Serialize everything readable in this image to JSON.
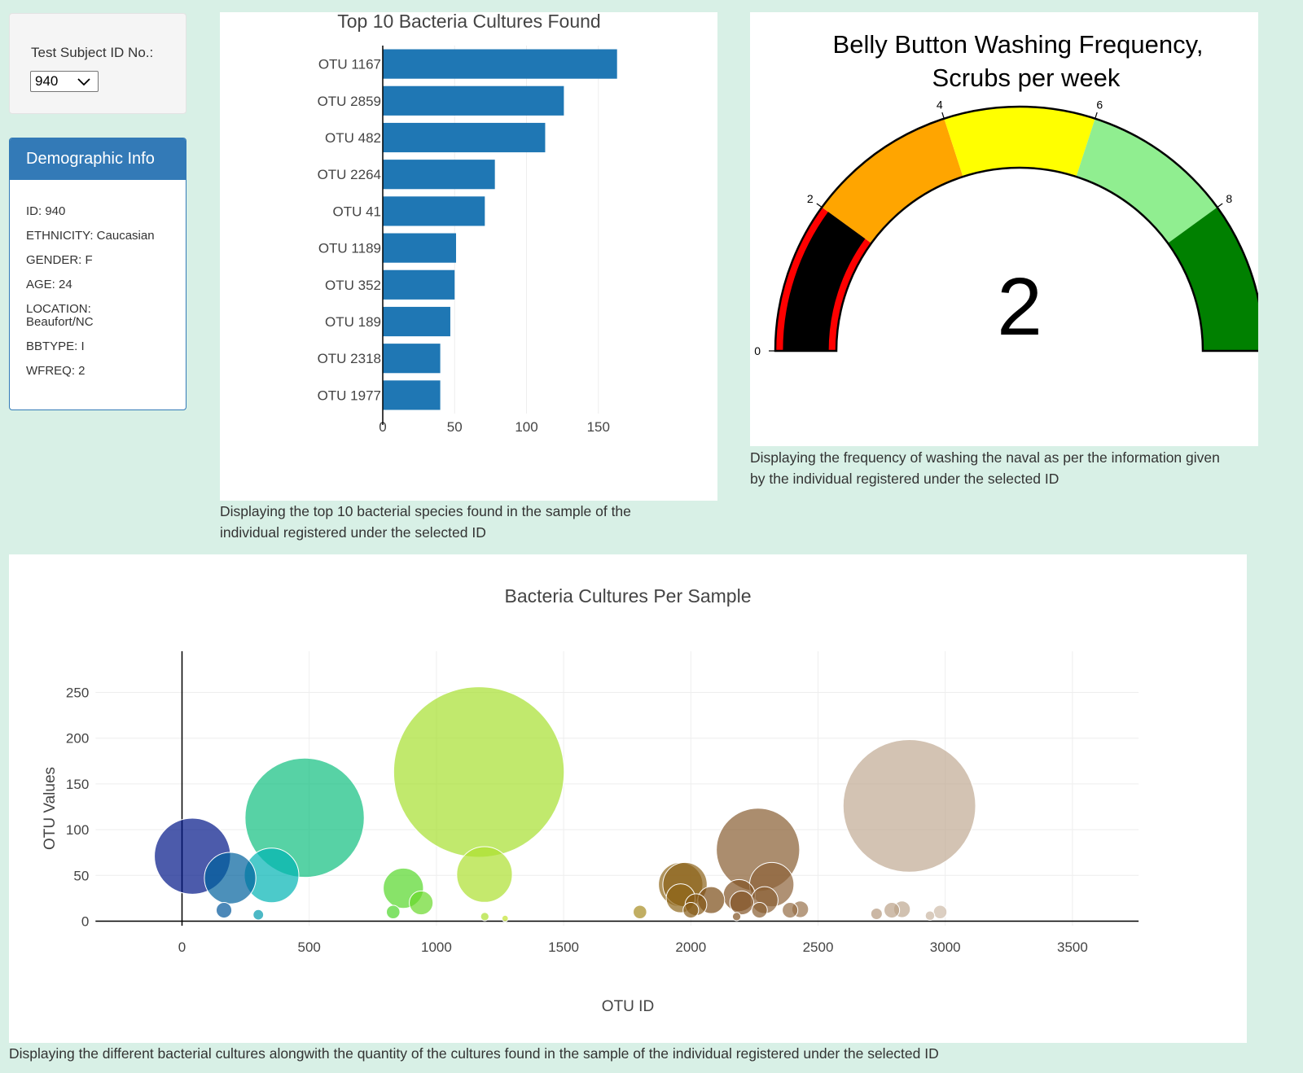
{
  "selector": {
    "label": "Test Subject ID No.:",
    "value": "940"
  },
  "demographic": {
    "heading": "Demographic Info",
    "lines": [
      "ID: 940",
      "ETHNICITY: Caucasian",
      "GENDER: F",
      "AGE: 24",
      "LOCATION: Beaufort/NC",
      "BBTYPE: I",
      "WFREQ: 2"
    ]
  },
  "captions": {
    "bar": "Displaying the top 10 bacterial species found in the sample of the individual registered under the selected ID",
    "gauge": "Displaying the frequency of washing the naval as per the information given by the individual registered under the selected ID",
    "bubble": "Displaying the different bacterial cultures alongwith the quantity of the cultures found in the sample of the individual registered under the selected ID"
  },
  "chart_data": [
    {
      "type": "bar",
      "orientation": "horizontal",
      "title": "Top 10 Bacteria Cultures Found",
      "categories": [
        "OTU 1167",
        "OTU 2859",
        "OTU 482",
        "OTU 2264",
        "OTU 41",
        "OTU 1189",
        "OTU 352",
        "OTU 189",
        "OTU 2318",
        "OTU 1977"
      ],
      "values": [
        163,
        126,
        113,
        78,
        71,
        51,
        50,
        47,
        40,
        40
      ],
      "xticks": [
        0,
        50,
        100,
        150
      ],
      "xlim": [
        0,
        171
      ],
      "color": "#1f77b4"
    },
    {
      "type": "gauge",
      "title_lines": [
        "Belly Button Washing Frequency,",
        "Scrubs per week"
      ],
      "value": 2,
      "range": [
        0,
        10
      ],
      "ticks": [
        0,
        2,
        4,
        6,
        8,
        10
      ],
      "steps": [
        {
          "range": [
            0,
            2
          ],
          "color": "#ff0000"
        },
        {
          "range": [
            2,
            4
          ],
          "color": "#ffa500"
        },
        {
          "range": [
            4,
            6
          ],
          "color": "#ffff00"
        },
        {
          "range": [
            6,
            8
          ],
          "color": "#90ee90"
        },
        {
          "range": [
            8,
            10
          ],
          "color": "#008000"
        }
      ],
      "bar_color": "#000000"
    },
    {
      "type": "scatter",
      "title": "Bacteria Cultures Per Sample",
      "xlabel": "OTU ID",
      "ylabel": "OTU Values",
      "xlim": [
        -340,
        3760
      ],
      "ylim": [
        -5,
        295
      ],
      "xticks": [
        0,
        500,
        1000,
        1500,
        2000,
        2500,
        3000,
        3500
      ],
      "yticks": [
        0,
        50,
        100,
        150,
        200,
        250
      ],
      "colorscale": "Earth",
      "points": [
        {
          "x": 41,
          "y": 71
        },
        {
          "x": 189,
          "y": 47
        },
        {
          "x": 165,
          "y": 12
        },
        {
          "x": 300,
          "y": 7
        },
        {
          "x": 352,
          "y": 50
        },
        {
          "x": 482,
          "y": 113
        },
        {
          "x": 830,
          "y": 10
        },
        {
          "x": 870,
          "y": 36
        },
        {
          "x": 940,
          "y": 20
        },
        {
          "x": 1167,
          "y": 163
        },
        {
          "x": 1189,
          "y": 51
        },
        {
          "x": 1190,
          "y": 5
        },
        {
          "x": 1270,
          "y": 3
        },
        {
          "x": 1800,
          "y": 10
        },
        {
          "x": 1960,
          "y": 40
        },
        {
          "x": 1977,
          "y": 40
        },
        {
          "x": 1960,
          "y": 25
        },
        {
          "x": 2000,
          "y": 12
        },
        {
          "x": 2020,
          "y": 18
        },
        {
          "x": 2080,
          "y": 23
        },
        {
          "x": 2180,
          "y": 5
        },
        {
          "x": 2190,
          "y": 28
        },
        {
          "x": 2200,
          "y": 20
        },
        {
          "x": 2264,
          "y": 78
        },
        {
          "x": 2270,
          "y": 12
        },
        {
          "x": 2290,
          "y": 23
        },
        {
          "x": 2318,
          "y": 40
        },
        {
          "x": 2390,
          "y": 12
        },
        {
          "x": 2430,
          "y": 13
        },
        {
          "x": 2730,
          "y": 8
        },
        {
          "x": 2790,
          "y": 12
        },
        {
          "x": 2830,
          "y": 13
        },
        {
          "x": 2859,
          "y": 126
        },
        {
          "x": 2940,
          "y": 6
        },
        {
          "x": 2980,
          "y": 10
        }
      ]
    }
  ]
}
